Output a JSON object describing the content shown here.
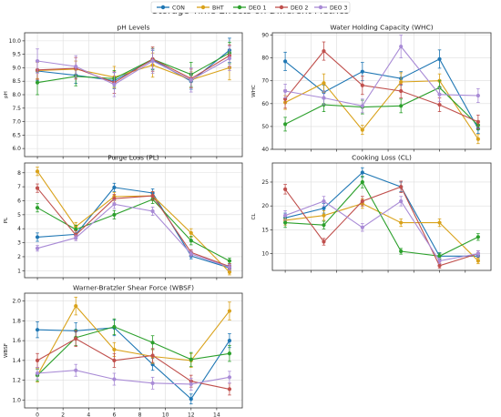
{
  "figure": {
    "suptitle": "Storage Time Effects on Different Metrics"
  },
  "legend": {
    "entries": [
      {
        "name": "CON",
        "color": "#1f77b4"
      },
      {
        "name": "BHT",
        "color": "#d9a21b"
      },
      {
        "name": "DEO 1",
        "color": "#2ca02c"
      },
      {
        "name": "DEO 2",
        "color": "#c0504d"
      },
      {
        "name": "DEO 3",
        "color": "#a98bd6"
      }
    ]
  },
  "chart_data": [
    {
      "type": "line",
      "title": "pH Levels",
      "xlabel": "",
      "ylabel": "pH",
      "x": [
        0,
        3,
        6,
        9,
        12,
        15
      ],
      "xlim": [
        -1,
        16
      ],
      "ylim": [
        5.7,
        10.3
      ],
      "yticks": [
        6.0,
        6.5,
        7.0,
        7.5,
        8.0,
        8.5,
        9.0,
        9.5,
        10.0
      ],
      "ytick_labels": [
        "6.0",
        "6.5",
        "7.0",
        "7.5",
        "8.0",
        "8.5",
        "9.0",
        "9.5",
        "10.0"
      ],
      "show_xticklabels": false,
      "grid": true,
      "series": [
        {
          "name": "CON",
          "values": [
            8.88,
            8.72,
            8.52,
            9.3,
            8.5,
            9.65
          ],
          "errors": [
            0.35,
            0.3,
            0.3,
            0.35,
            0.3,
            0.45
          ]
        },
        {
          "name": "BHT",
          "values": [
            8.9,
            8.95,
            8.65,
            9.1,
            8.55,
            9.0
          ],
          "errors": [
            0.3,
            0.3,
            0.4,
            0.45,
            0.3,
            0.45
          ]
        },
        {
          "name": "DEO 1",
          "values": [
            8.45,
            8.68,
            8.6,
            9.32,
            8.75,
            9.55
          ],
          "errors": [
            0.45,
            0.35,
            0.3,
            0.4,
            0.45,
            0.4
          ]
        },
        {
          "name": "DEO 2",
          "values": [
            8.92,
            8.98,
            8.45,
            9.32,
            8.6,
            9.45
          ],
          "errors": [
            0.35,
            0.4,
            0.4,
            0.45,
            0.35,
            0.4
          ]
        },
        {
          "name": "DEO 3",
          "values": [
            9.25,
            9.05,
            8.38,
            9.25,
            8.55,
            9.35
          ],
          "errors": [
            0.45,
            0.4,
            0.45,
            0.45,
            0.45,
            0.45
          ]
        }
      ]
    },
    {
      "type": "line",
      "title": "Water Holding Capacity (WHC)",
      "xlabel": "",
      "ylabel": "WHC",
      "x": [
        0,
        3,
        6,
        9,
        12,
        15
      ],
      "xlim": [
        -1,
        16
      ],
      "ylim": [
        40,
        91
      ],
      "yticks": [
        40,
        50,
        60,
        70,
        80,
        90
      ],
      "ytick_labels": [
        "40",
        "50",
        "60",
        "70",
        "80",
        "90"
      ],
      "show_xticklabels": false,
      "grid": true,
      "series": [
        {
          "name": "CON",
          "values": [
            78.5,
            65,
            74,
            71,
            79.5,
            49
          ],
          "errors": [
            4,
            3,
            4,
            3,
            4,
            2
          ]
        },
        {
          "name": "BHT",
          "values": [
            60.5,
            69,
            48.5,
            69.5,
            70,
            44.5
          ],
          "errors": [
            3,
            4,
            2,
            4,
            3,
            2
          ]
        },
        {
          "name": "DEO 1",
          "values": [
            51,
            59.5,
            58.5,
            59,
            67,
            50.5
          ],
          "errors": [
            3,
            3,
            3,
            3,
            3,
            2
          ]
        },
        {
          "name": "DEO 2",
          "values": [
            62,
            83,
            68,
            65.5,
            59.5,
            52
          ],
          "errors": [
            4,
            4,
            4,
            3,
            3,
            3
          ]
        },
        {
          "name": "DEO 3",
          "values": [
            65.5,
            62.5,
            59,
            85,
            64,
            63.5
          ],
          "errors": [
            3,
            3,
            3,
            5,
            3,
            3
          ]
        }
      ]
    },
    {
      "type": "line",
      "title": "Purge Loss (PL)",
      "xlabel": "",
      "ylabel": "PL",
      "x": [
        0,
        3,
        6,
        9,
        12,
        15
      ],
      "xlim": [
        -1,
        16
      ],
      "ylim": [
        0.5,
        8.7
      ],
      "yticks": [
        1,
        2,
        3,
        4,
        5,
        6,
        7,
        8
      ],
      "ytick_labels": [
        "1",
        "2",
        "3",
        "4",
        "5",
        "6",
        "7",
        "8"
      ],
      "show_xticklabels": false,
      "grid": true,
      "series": [
        {
          "name": "CON",
          "values": [
            3.4,
            3.6,
            6.95,
            6.55,
            2.05,
            1.2
          ],
          "errors": [
            0.3,
            0.3,
            0.3,
            0.3,
            0.2,
            0.2
          ]
        },
        {
          "name": "BHT",
          "values": [
            8.1,
            4.15,
            6.3,
            6.35,
            3.7,
            0.9
          ],
          "errors": [
            0.3,
            0.3,
            0.3,
            0.3,
            0.3,
            0.2
          ]
        },
        {
          "name": "DEO 1",
          "values": [
            5.5,
            3.95,
            5.0,
            6.1,
            3.15,
            1.7
          ],
          "errors": [
            0.3,
            0.3,
            0.3,
            0.3,
            0.3,
            0.2
          ]
        },
        {
          "name": "DEO 2",
          "values": [
            6.9,
            3.55,
            6.15,
            6.35,
            2.3,
            1.3
          ],
          "errors": [
            0.3,
            0.3,
            0.3,
            0.3,
            0.2,
            0.2
          ]
        },
        {
          "name": "DEO 3",
          "values": [
            2.6,
            3.35,
            5.75,
            5.25,
            2.2,
            1.25
          ],
          "errors": [
            0.2,
            0.2,
            0.3,
            0.3,
            0.2,
            0.2
          ]
        }
      ]
    },
    {
      "type": "line",
      "title": "Cooking Loss (CL)",
      "xlabel": "",
      "ylabel": "CL",
      "x": [
        0,
        3,
        6,
        9,
        12,
        15
      ],
      "xlim": [
        -1,
        16
      ],
      "ylim": [
        6.5,
        29
      ],
      "yticks": [
        10,
        15,
        20,
        25
      ],
      "ytick_labels": [
        "10",
        "15",
        "20",
        "25"
      ],
      "show_xticklabels": true,
      "grid": true,
      "series": [
        {
          "name": "CON",
          "values": [
            17.5,
            19.5,
            27,
            24,
            9.5,
            9.5
          ],
          "errors": [
            1,
            1,
            1,
            1,
            0.7,
            0.7
          ]
        },
        {
          "name": "BHT",
          "values": [
            17,
            18,
            20.5,
            16.5,
            16.5,
            8.5
          ],
          "errors": [
            1,
            1,
            1,
            0.8,
            0.8,
            0.6
          ]
        },
        {
          "name": "DEO 1",
          "values": [
            16.5,
            16,
            25,
            10.5,
            9.5,
            13.5
          ],
          "errors": [
            1,
            0.8,
            1.2,
            0.6,
            0.6,
            0.7
          ]
        },
        {
          "name": "DEO 2",
          "values": [
            23.5,
            12.5,
            21,
            24,
            7.5,
            10
          ],
          "errors": [
            1,
            0.7,
            1,
            1.2,
            0.5,
            0.6
          ]
        },
        {
          "name": "DEO 3",
          "values": [
            18,
            21,
            15.5,
            21,
            8.5,
            10
          ],
          "errors": [
            1,
            1,
            0.8,
            1,
            0.6,
            0.6
          ]
        }
      ]
    },
    {
      "type": "line",
      "title": "Warner-Bratzler Shear Force (WBSF)",
      "xlabel": "",
      "ylabel": "WBSF",
      "x": [
        0,
        3,
        6,
        9,
        12,
        15
      ],
      "xlim": [
        -1,
        16
      ],
      "ylim": [
        0.92,
        2.08
      ],
      "yticks": [
        1.0,
        1.2,
        1.4,
        1.6,
        1.8,
        2.0
      ],
      "ytick_labels": [
        "1.0",
        "1.2",
        "1.4",
        "1.6",
        "1.8",
        "2.0"
      ],
      "show_xticklabels": true,
      "xtick_labels": [
        "0",
        "2",
        "4",
        "6",
        "8",
        "10",
        "12",
        "14"
      ],
      "xticks": [
        0,
        2,
        4,
        6,
        8,
        10,
        12,
        14
      ],
      "grid": true,
      "series": [
        {
          "name": "CON",
          "values": [
            1.71,
            1.7,
            1.73,
            1.36,
            1.01,
            1.6
          ],
          "errors": [
            0.08,
            0.08,
            0.08,
            0.06,
            0.05,
            0.07
          ]
        },
        {
          "name": "BHT",
          "values": [
            1.25,
            1.95,
            1.51,
            1.44,
            1.4,
            1.9
          ],
          "errors": [
            0.07,
            0.09,
            0.07,
            0.07,
            0.07,
            0.09
          ]
        },
        {
          "name": "DEO 1",
          "values": [
            1.25,
            1.63,
            1.74,
            1.58,
            1.41,
            1.47
          ],
          "errors": [
            0.06,
            0.08,
            0.08,
            0.07,
            0.07,
            0.08
          ]
        },
        {
          "name": "DEO 2",
          "values": [
            1.4,
            1.62,
            1.4,
            1.45,
            1.19,
            1.11
          ],
          "errors": [
            0.07,
            0.08,
            0.07,
            0.07,
            0.06,
            0.06
          ]
        },
        {
          "name": "DEO 3",
          "values": [
            1.27,
            1.3,
            1.21,
            1.17,
            1.16,
            1.23
          ],
          "errors": [
            0.06,
            0.06,
            0.06,
            0.06,
            0.06,
            0.06
          ]
        }
      ]
    }
  ]
}
